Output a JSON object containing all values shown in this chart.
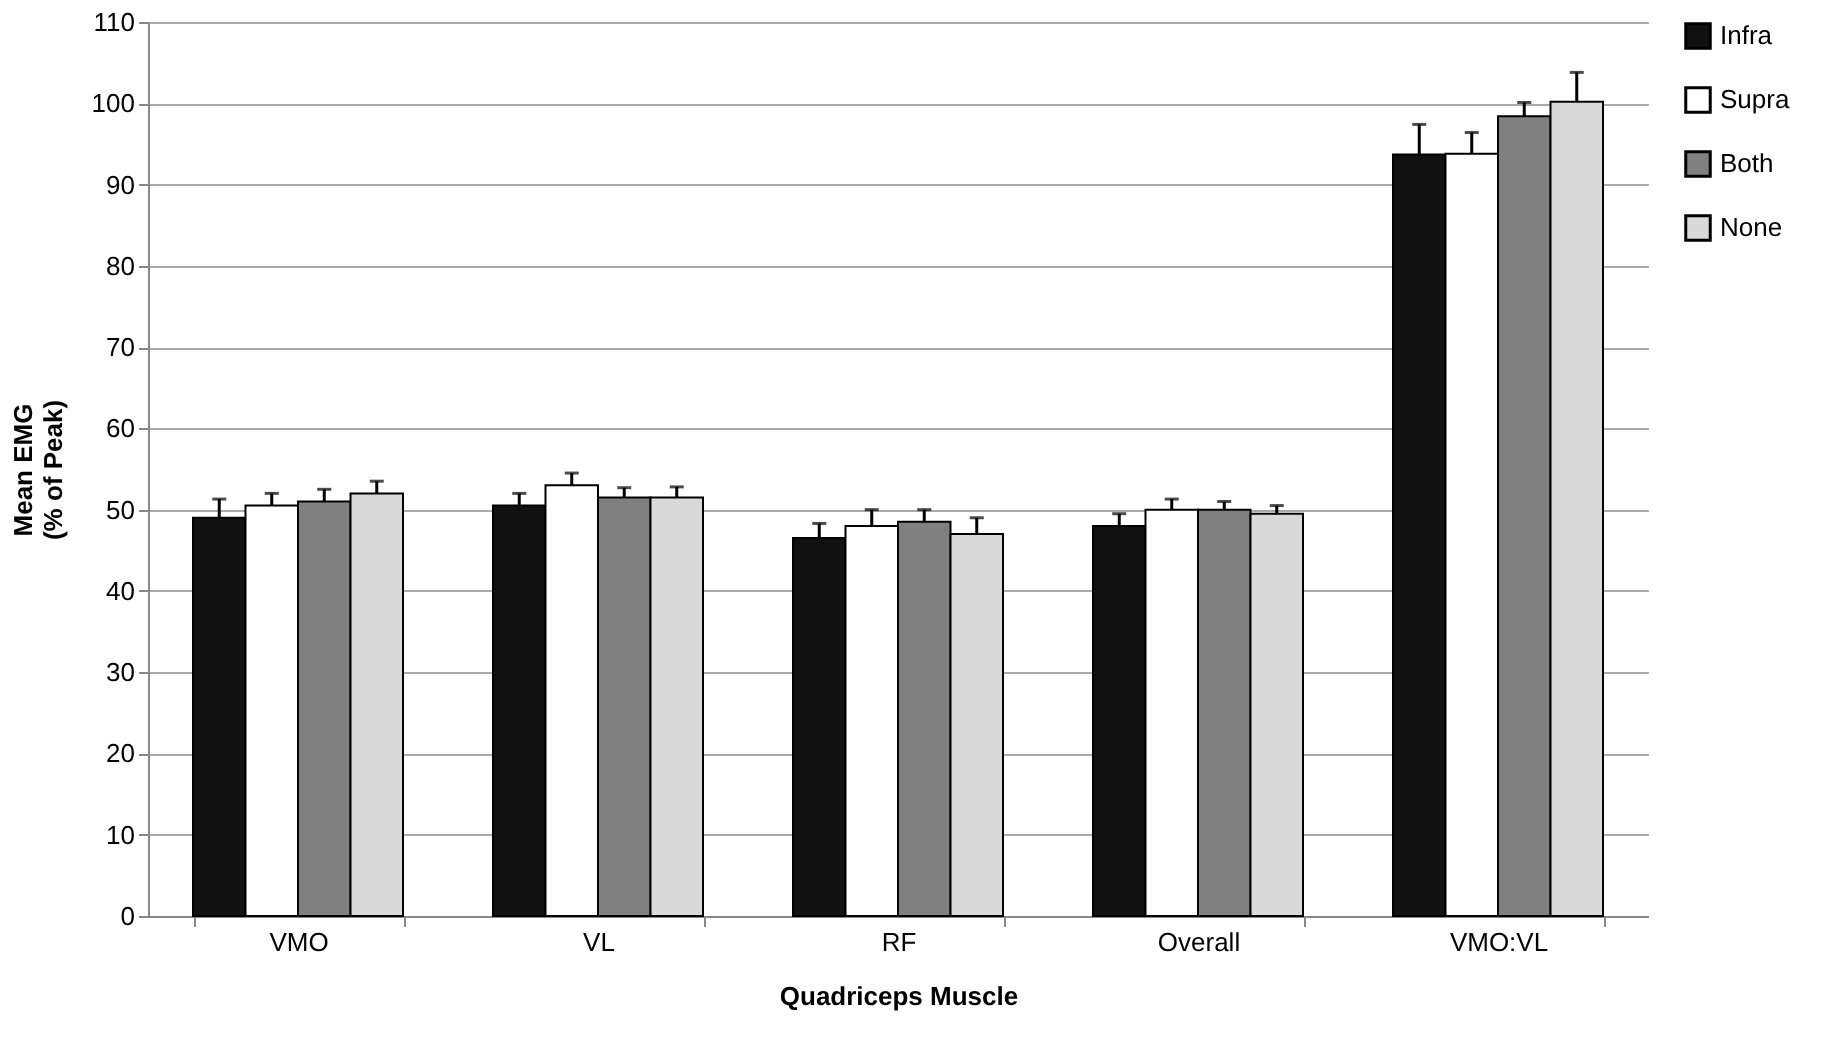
{
  "chart_data": {
    "type": "bar",
    "xlabel": "Quadriceps Muscle",
    "ylabel": "Mean EMG\n(% of Peak)",
    "categories": [
      "VMO",
      "VL",
      "RF",
      "Overall",
      "VMO:VL"
    ],
    "series": [
      {
        "name": "Infra",
        "color": "#111111",
        "values": [
          49,
          50.5,
          46.5,
          48,
          93.7
        ],
        "errors": [
          [
            49,
            51.3
          ],
          [
            50.5,
            52
          ],
          [
            46.5,
            48.3
          ],
          [
            48,
            49.5
          ],
          [
            93.7,
            97.4
          ]
        ]
      },
      {
        "name": "Supra",
        "color": "#ffffff",
        "values": [
          50.5,
          53,
          48,
          50,
          93.8
        ],
        "errors": [
          [
            50.5,
            52
          ],
          [
            53,
            54.5
          ],
          [
            48,
            50
          ],
          [
            50,
            51.3
          ],
          [
            93.8,
            96.4
          ]
        ]
      },
      {
        "name": "Both",
        "color": "#808080",
        "values": [
          51,
          51.5,
          48.5,
          50,
          98.4
        ],
        "errors": [
          [
            51,
            52.5
          ],
          [
            51.5,
            52.7
          ],
          [
            48.5,
            50
          ],
          [
            50,
            51
          ],
          [
            98.4,
            100.1
          ]
        ]
      },
      {
        "name": "None",
        "color": "#d9d9d9",
        "values": [
          52,
          51.5,
          47,
          49.5,
          100.2
        ],
        "errors": [
          [
            52,
            53.5
          ],
          [
            51.5,
            52.8
          ],
          [
            47,
            49
          ],
          [
            49.5,
            50.5
          ],
          [
            100.2,
            103.8
          ]
        ]
      }
    ],
    "ylim": [
      0,
      110
    ],
    "yticks": [
      0,
      10,
      20,
      30,
      40,
      50,
      60,
      70,
      80,
      90,
      100,
      110
    ],
    "grid": "y",
    "legend": "right"
  }
}
